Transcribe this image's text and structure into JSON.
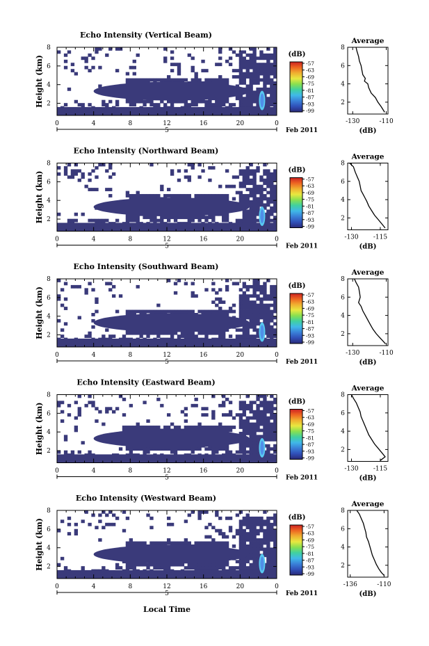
{
  "figure": {
    "xlabel": "Local Time",
    "date_label": "Feb 2011",
    "day_label": "5",
    "colorbar_unit": "(dB)",
    "colorbar_ticks": [
      "-57",
      "-63",
      "-69",
      "-75",
      "-81",
      "-87",
      "-93",
      "-99"
    ],
    "avg_title": "Average",
    "avg_unit": "(dB)",
    "colors": {
      "background_echo": "#3a3a7a",
      "strong_echo_core": "#4f8fe8",
      "strong_echo_edge": "#58c8f0",
      "colorbar": [
        "#cc2222",
        "#ee6622",
        "#f0b030",
        "#e8e840",
        "#88e050",
        "#40d0a0",
        "#40b8e8",
        "#3a80d8",
        "#3050b8",
        "#2a2a78"
      ]
    }
  },
  "chart_data": [
    {
      "type": "heatmap",
      "title": "Echo Intensity (Vertical Beam)",
      "ylabel": "Height (km)",
      "x_ticks": [
        "0",
        "4",
        "8",
        "12",
        "16",
        "20",
        "0"
      ],
      "xlim": [
        0,
        24
      ],
      "y_ticks": [
        "2",
        "4",
        "6",
        "8"
      ],
      "ylim": [
        0.7,
        8
      ],
      "colorbar_range_db": [
        -99,
        -57
      ],
      "average_profile": {
        "type": "line",
        "title": "Average",
        "xlabel": "(dB)",
        "x_ticks": [
          "-130",
          "-110"
        ],
        "xlim": [
          -133,
          -109
        ],
        "y_ticks": [
          "2",
          "4",
          "6",
          "8"
        ],
        "ylim": [
          0.7,
          8
        ],
        "x": [
          -128,
          -127.5,
          -126.5,
          -126,
          -125,
          -124.5,
          -124,
          -122.5,
          -123,
          -121,
          -120.5,
          -119,
          -116.5,
          -115,
          -113,
          -111
        ],
        "y": [
          8,
          7.6,
          7.0,
          6.5,
          6.0,
          5.5,
          5.0,
          4.6,
          4.3,
          4.0,
          3.6,
          3.0,
          2.5,
          2.0,
          1.5,
          0.9
        ]
      }
    },
    {
      "type": "heatmap",
      "title": "Echo Intensity (Northward Beam)",
      "ylabel": "Height (km)",
      "x_ticks": [
        "0",
        "4",
        "8",
        "12",
        "16",
        "20",
        "0"
      ],
      "xlim": [
        0,
        24
      ],
      "y_ticks": [
        "2",
        "4",
        "6",
        "8"
      ],
      "ylim": [
        0.7,
        8
      ],
      "colorbar_range_db": [
        -99,
        -57
      ],
      "average_profile": {
        "type": "line",
        "title": "Average",
        "xlabel": "(dB)",
        "x_ticks": [
          "-130",
          "-115"
        ],
        "xlim": [
          -132,
          -111
        ],
        "y_ticks": [
          "2",
          "4",
          "6",
          "8"
        ],
        "ylim": [
          0.7,
          8
        ],
        "x": [
          -131,
          -129,
          -128,
          -127,
          -126,
          -125.5,
          -125,
          -124,
          -123,
          -122,
          -121,
          -119.5,
          -118,
          -116,
          -114,
          -112.5
        ],
        "y": [
          8,
          7.6,
          7.0,
          6.5,
          6.0,
          5.5,
          5.0,
          4.6,
          4.2,
          3.8,
          3.3,
          2.8,
          2.3,
          1.8,
          1.3,
          0.9
        ]
      }
    },
    {
      "type": "heatmap",
      "title": "Echo Intensity (Southward Beam)",
      "ylabel": "Height (km)",
      "x_ticks": [
        "0",
        "4",
        "8",
        "12",
        "16",
        "20",
        "0"
      ],
      "xlim": [
        0,
        24
      ],
      "y_ticks": [
        "2",
        "4",
        "6",
        "8"
      ],
      "ylim": [
        0.7,
        8
      ],
      "colorbar_range_db": [
        -99,
        -57
      ],
      "average_profile": {
        "type": "line",
        "title": "Average",
        "xlabel": "(dB)",
        "x_ticks": [
          "-130",
          "-110"
        ],
        "xlim": [
          -133,
          -109
        ],
        "y_ticks": [
          "2",
          "4",
          "6",
          "8"
        ],
        "ylim": [
          0.7,
          8
        ],
        "x": [
          -129,
          -128,
          -126.5,
          -126,
          -125.5,
          -126.5,
          -125,
          -124,
          -122.5,
          -121,
          -119.5,
          -118,
          -116,
          -114,
          -112,
          -110.5
        ],
        "y": [
          8,
          7.6,
          7.1,
          6.6,
          6.0,
          5.4,
          5.0,
          4.5,
          4.0,
          3.5,
          3.0,
          2.5,
          2.0,
          1.6,
          1.2,
          0.9
        ]
      }
    },
    {
      "type": "heatmap",
      "title": "Echo Intensity (Eastward Beam)",
      "ylabel": "Height (km)",
      "x_ticks": [
        "0",
        "4",
        "8",
        "12",
        "16",
        "20",
        "0"
      ],
      "xlim": [
        0,
        24
      ],
      "y_ticks": [
        "2",
        "4",
        "6",
        "8"
      ],
      "ylim": [
        0.7,
        8
      ],
      "colorbar_range_db": [
        -99,
        -57
      ],
      "average_profile": {
        "type": "line",
        "title": "Average",
        "xlabel": "(dB)",
        "x_ticks": [
          "-130",
          "-115"
        ],
        "xlim": [
          -132,
          -111
        ],
        "y_ticks": [
          "2",
          "4",
          "6",
          "8"
        ],
        "ylim": [
          0.7,
          8
        ],
        "x": [
          -130,
          -129,
          -127.5,
          -126.5,
          -125.5,
          -125,
          -124,
          -123,
          -122,
          -121,
          -119.5,
          -118,
          -116,
          -114,
          -112.5,
          -115
        ],
        "y": [
          8,
          7.6,
          7.1,
          6.6,
          6.1,
          5.6,
          5.1,
          4.6,
          4.1,
          3.6,
          3.1,
          2.6,
          2.1,
          1.6,
          1.2,
          0.8
        ]
      }
    },
    {
      "type": "heatmap",
      "title": "Echo Intensity (Westward Beam)",
      "ylabel": "Height (km)",
      "x_ticks": [
        "0",
        "4",
        "8",
        "12",
        "16",
        "20",
        "0"
      ],
      "xlim": [
        0,
        24
      ],
      "y_ticks": [
        "2",
        "4",
        "6",
        "8"
      ],
      "ylim": [
        0.7,
        8
      ],
      "colorbar_range_db": [
        -99,
        -57
      ],
      "average_profile": {
        "type": "line",
        "title": "Average",
        "xlabel": "(dB)",
        "x_ticks": [
          "-136",
          "-110"
        ],
        "xlim": [
          -138,
          -107
        ],
        "y_ticks": [
          "2",
          "4",
          "6",
          "8"
        ],
        "ylim": [
          0.7,
          8
        ],
        "x": [
          -131,
          -129,
          -127.5,
          -126,
          -125,
          -124,
          -123.5,
          -122,
          -121,
          -120,
          -119,
          -117.5,
          -116,
          -114,
          -112,
          -110
        ],
        "y": [
          8,
          7.6,
          7.1,
          6.6,
          6.1,
          5.6,
          5.1,
          4.6,
          4.1,
          3.6,
          3.1,
          2.6,
          2.1,
          1.6,
          1.2,
          0.9
        ]
      }
    }
  ]
}
